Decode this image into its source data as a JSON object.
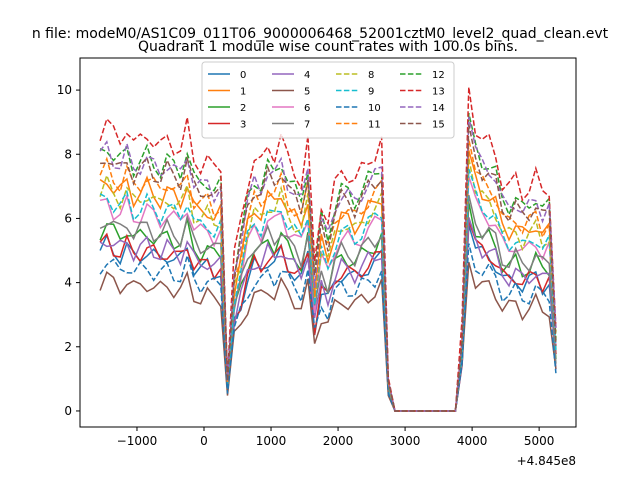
{
  "chart_data": {
    "type": "line",
    "suptitle": "n file: modeM0/AS1C09_011T06_9000006468_52001cztM0_level2_quad_clean.evt",
    "title": "Quadrant 1 module wise count rates with 100.0s bins.",
    "xlabel": "",
    "ylabel": "",
    "x_offset_label": "+4.845e8",
    "xlim": [
      -1850,
      5550
    ],
    "ylim": [
      -0.5,
      11.0
    ],
    "xticks": [
      -1000,
      0,
      1000,
      2000,
      3000,
      4000,
      5000
    ],
    "xtick_labels": [
      "−1000",
      "0",
      "1000",
      "2000",
      "3000",
      "4000",
      "5000"
    ],
    "yticks": [
      0,
      2,
      4,
      6,
      8,
      10
    ],
    "ytick_labels": [
      "0",
      "2",
      "4",
      "6",
      "8",
      "10"
    ],
    "grid": false,
    "legend": {
      "placement": "upper-center",
      "ncol": 4
    },
    "x": [
      -1550,
      -1450,
      -1350,
      -1250,
      -1150,
      -1050,
      -950,
      -850,
      -750,
      -650,
      -550,
      -450,
      -350,
      -250,
      -150,
      -50,
      50,
      150,
      250,
      350,
      450,
      550,
      650,
      750,
      850,
      950,
      1050,
      1150,
      1250,
      1350,
      1450,
      1550,
      1650,
      1750,
      1850,
      1950,
      2050,
      2150,
      2250,
      2350,
      2450,
      2550,
      2650,
      2750,
      2850,
      3750,
      3850,
      3950,
      4050,
      4150,
      4250,
      4350,
      4450,
      4550,
      4650,
      4750,
      4850,
      4950,
      5050,
      5150,
      5250
    ],
    "series": [
      {
        "name": "0",
        "color": "#1f77b4",
        "dash": "solid",
        "base": 5.0
      },
      {
        "name": "1",
        "color": "#ff7f0e",
        "dash": "solid",
        "base": 7.0
      },
      {
        "name": "2",
        "color": "#2ca02c",
        "dash": "solid",
        "base": 5.6
      },
      {
        "name": "3",
        "color": "#d62728",
        "dash": "solid",
        "base": 5.1
      },
      {
        "name": "4",
        "color": "#9467bd",
        "dash": "solid",
        "base": 5.2
      },
      {
        "name": "5",
        "color": "#8c564b",
        "dash": "solid",
        "base": 4.0
      },
      {
        "name": "6",
        "color": "#e377c2",
        "dash": "solid",
        "base": 6.3
      },
      {
        "name": "7",
        "color": "#7f7f7f",
        "dash": "solid",
        "base": 5.8
      },
      {
        "name": "8",
        "color": "#bcbd22",
        "dash": "dashed",
        "base": 6.8
      },
      {
        "name": "9",
        "color": "#17becf",
        "dash": "dashed",
        "base": 6.5
      },
      {
        "name": "10",
        "color": "#1f77b4",
        "dash": "dashed",
        "base": 4.5
      },
      {
        "name": "11",
        "color": "#ff7f0e",
        "dash": "dashed",
        "base": 7.3
      },
      {
        "name": "12",
        "color": "#2ca02c",
        "dash": "dashed",
        "base": 8.0
      },
      {
        "name": "13",
        "color": "#d62728",
        "dash": "dashed",
        "base": 8.7
      },
      {
        "name": "14",
        "color": "#9467bd",
        "dash": "dashed",
        "base": 7.9
      },
      {
        "name": "15",
        "color": "#8c564b",
        "dash": "dashed",
        "base": 7.7
      }
    ],
    "profile": [
      1.0,
      1.04,
      0.99,
      0.97,
      1.02,
      0.95,
      0.97,
      1.0,
      0.96,
      0.94,
      0.98,
      0.95,
      0.93,
      1.02,
      0.9,
      0.88,
      0.9,
      0.86,
      0.88,
      0.12,
      0.55,
      0.68,
      0.82,
      0.9,
      0.88,
      0.95,
      0.92,
      0.98,
      0.9,
      0.86,
      0.82,
      0.96,
      0.52,
      0.75,
      0.68,
      0.8,
      0.86,
      0.85,
      0.82,
      0.86,
      0.9,
      0.92,
      0.96,
      0.12,
      0.0,
      0.0,
      0.3,
      1.16,
      1.02,
      0.97,
      0.96,
      0.92,
      0.82,
      0.8,
      0.83,
      0.78,
      0.8,
      0.84,
      0.78,
      0.8,
      0.3
    ]
  }
}
